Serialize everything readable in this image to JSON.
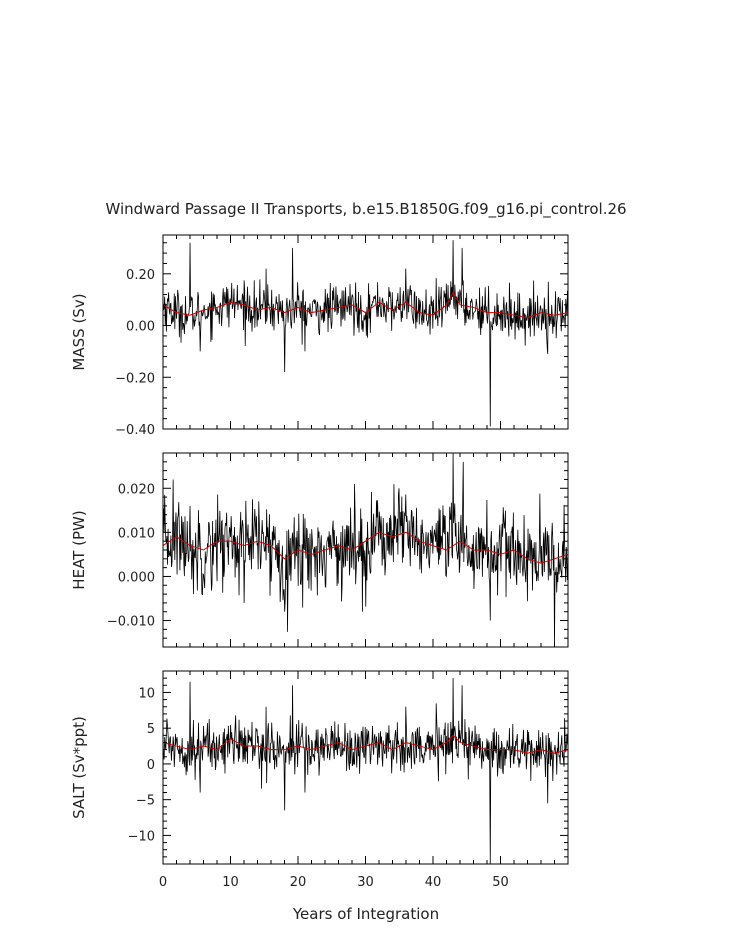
{
  "title": "Windward Passage II Transports, b.e15.B1850G.f09_g16.pi_control.26",
  "xlabel": "Years of Integration",
  "colors": {
    "raw": "#000000",
    "smooth": "#cc0000",
    "axis": "#000000"
  },
  "chart_data": [
    {
      "type": "line",
      "ylabel": "MASS (Sv)",
      "xlim": [
        0,
        60
      ],
      "ylim": [
        -0.4,
        0.35
      ],
      "yticks": [
        -0.4,
        -0.2,
        0.0,
        0.2
      ],
      "ytick_labels": [
        "−0.40",
        "−0.20",
        "0.00",
        "0.20"
      ],
      "xticks": [
        0,
        10,
        20,
        30,
        40,
        50
      ],
      "baseline": 0.06,
      "noise": 0.045,
      "spikes": [
        [
          4.0,
          0.32
        ],
        [
          5.5,
          -0.1
        ],
        [
          15.3,
          0.22
        ],
        [
          18.0,
          -0.18
        ],
        [
          19.2,
          0.3
        ],
        [
          21.0,
          -0.1
        ],
        [
          36.0,
          0.22
        ],
        [
          43.0,
          0.33
        ],
        [
          44.3,
          0.3
        ],
        [
          48.5,
          -0.39
        ],
        [
          57.0,
          -0.11
        ]
      ],
      "series": [
        {
          "kind": "raw",
          "x_range": [
            0,
            60
          ]
        },
        {
          "kind": "smooth",
          "x": [
            0,
            2,
            4,
            6,
            8,
            10,
            12,
            14,
            16,
            18,
            20,
            22,
            24,
            26,
            28,
            30,
            32,
            34,
            36,
            38,
            40,
            42,
            43,
            44,
            46,
            48,
            50,
            52,
            54,
            56,
            58,
            60
          ],
          "values": [
            0.08,
            0.05,
            0.04,
            0.06,
            0.07,
            0.09,
            0.08,
            0.06,
            0.07,
            0.05,
            0.07,
            0.05,
            0.06,
            0.07,
            0.08,
            0.05,
            0.09,
            0.06,
            0.09,
            0.05,
            0.04,
            0.08,
            0.13,
            0.08,
            0.07,
            0.05,
            0.05,
            0.04,
            0.03,
            0.05,
            0.04,
            0.05
          ]
        }
      ]
    },
    {
      "type": "line",
      "ylabel": "HEAT (PW)",
      "xlim": [
        0,
        60
      ],
      "ylim": [
        -0.016,
        0.028
      ],
      "yticks": [
        -0.01,
        0.0,
        0.01,
        0.02
      ],
      "ytick_labels": [
        "−0.010",
        "0.000",
        "0.010",
        "0.020"
      ],
      "xticks": [
        0,
        10,
        20,
        30,
        40,
        50
      ],
      "baseline": 0.0068,
      "noise": 0.0048,
      "spikes": [
        [
          1.5,
          0.022
        ],
        [
          4.5,
          -0.004
        ],
        [
          12.0,
          -0.006
        ],
        [
          18.0,
          -0.008
        ],
        [
          29.5,
          -0.008
        ],
        [
          35.0,
          0.02
        ],
        [
          43.0,
          0.028
        ],
        [
          44.5,
          0.026
        ],
        [
          48.5,
          -0.01
        ],
        [
          58.0,
          -0.016
        ]
      ],
      "series": [
        {
          "kind": "raw",
          "x_range": [
            0,
            60
          ]
        },
        {
          "kind": "smooth",
          "x": [
            0,
            2,
            4,
            6,
            8,
            10,
            12,
            14,
            16,
            18,
            20,
            22,
            24,
            26,
            28,
            30,
            32,
            34,
            36,
            38,
            40,
            42,
            44,
            46,
            48,
            50,
            52,
            54,
            56,
            58,
            60
          ],
          "values": [
            0.007,
            0.009,
            0.007,
            0.006,
            0.008,
            0.008,
            0.007,
            0.008,
            0.007,
            0.004,
            0.006,
            0.005,
            0.006,
            0.007,
            0.006,
            0.008,
            0.01,
            0.009,
            0.01,
            0.008,
            0.007,
            0.006,
            0.008,
            0.006,
            0.006,
            0.005,
            0.006,
            0.004,
            0.003,
            0.004,
            0.005
          ]
        }
      ]
    },
    {
      "type": "line",
      "ylabel": "SALT (Sv*ppt)",
      "xlim": [
        0,
        60
      ],
      "ylim": [
        -14,
        13
      ],
      "yticks": [
        -10,
        -5,
        0,
        5,
        10
      ],
      "ytick_labels": [
        "−10",
        "−5",
        "0",
        "5",
        "10"
      ],
      "xticks": [
        0,
        10,
        20,
        30,
        40,
        50
      ],
      "xtick_labels": [
        "0",
        "10",
        "20",
        "30",
        "40",
        "50"
      ],
      "baseline": 2.2,
      "noise": 1.8,
      "spikes": [
        [
          4.0,
          11.5
        ],
        [
          5.5,
          -4.0
        ],
        [
          15.3,
          8.0
        ],
        [
          18.0,
          -6.5
        ],
        [
          19.2,
          11.0
        ],
        [
          21.0,
          -4.0
        ],
        [
          36.0,
          8.0
        ],
        [
          43.0,
          12.0
        ],
        [
          44.3,
          11.0
        ],
        [
          48.5,
          -14.0
        ],
        [
          57.0,
          -5.5
        ]
      ],
      "series": [
        {
          "kind": "raw",
          "x_range": [
            0,
            60
          ]
        },
        {
          "kind": "smooth",
          "x": [
            0,
            2,
            4,
            6,
            8,
            10,
            12,
            14,
            16,
            18,
            20,
            22,
            24,
            26,
            28,
            30,
            32,
            34,
            36,
            38,
            40,
            42,
            43,
            44,
            46,
            48,
            50,
            52,
            54,
            56,
            58,
            60
          ],
          "values": [
            3.0,
            2.5,
            2.0,
            2.5,
            2.0,
            3.5,
            2.5,
            2.5,
            2.0,
            2.0,
            2.5,
            2.0,
            2.5,
            3.0,
            2.0,
            2.5,
            3.0,
            2.0,
            3.0,
            2.5,
            2.0,
            3.0,
            4.0,
            3.0,
            2.5,
            2.0,
            2.0,
            2.0,
            1.5,
            2.0,
            1.5,
            2.0
          ]
        }
      ]
    }
  ]
}
